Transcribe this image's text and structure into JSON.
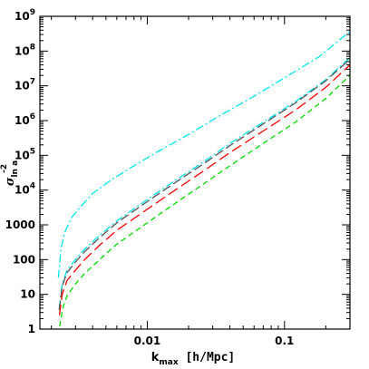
{
  "chart_data": {
    "type": "line",
    "xlabel": {
      "main": "k",
      "sub": "max",
      "unit": " [h/Mpc]"
    },
    "ylabel": {
      "main": "σ",
      "sub": "ln a",
      "sup": "-2"
    },
    "x_scale": "log",
    "y_scale": "log",
    "xlim": [
      0.00165,
      0.3
    ],
    "ylim": [
      1,
      1000000000
    ],
    "x_ticks": [
      {
        "value": 0.01,
        "label": "0.01"
      },
      {
        "value": 0.1,
        "label": "0.1"
      }
    ],
    "y_ticks": [
      {
        "value": 1,
        "label": "1"
      },
      {
        "value": 10,
        "label": "10"
      },
      {
        "value": 100,
        "label": "100"
      },
      {
        "value": 1000,
        "label": "1000"
      },
      {
        "value": 10000,
        "label": "10",
        "exp": "4"
      },
      {
        "value": 100000,
        "label": "10",
        "exp": "5"
      },
      {
        "value": 1000000,
        "label": "10",
        "exp": "6"
      },
      {
        "value": 10000000,
        "label": "10",
        "exp": "7"
      },
      {
        "value": 100000000,
        "label": "10",
        "exp": "8"
      },
      {
        "value": 1000000000,
        "label": "10",
        "exp": "9"
      }
    ],
    "grid": false,
    "series": [
      {
        "color": "#00e5ee",
        "dash": "9,3,2,3",
        "x": [
          0.00225,
          0.00235,
          0.0025,
          0.0028,
          0.0032,
          0.004,
          0.0055,
          0.008,
          0.012,
          0.02,
          0.035,
          0.06,
          0.1,
          0.18,
          0.3
        ],
        "y": [
          30,
          200,
          600,
          1600,
          3000,
          8000,
          20000,
          50000,
          130000,
          400000,
          1500000,
          5000000,
          17000000,
          70000000,
          370000000
        ]
      },
      {
        "color": "#00e5ee",
        "dash": "9,3,2,3",
        "x": [
          0.00228,
          0.0024,
          0.0026,
          0.003,
          0.0035,
          0.0045,
          0.006,
          0.009,
          0.015,
          0.025,
          0.04,
          0.07,
          0.12,
          0.2,
          0.3
        ],
        "y": [
          4,
          20,
          50,
          100,
          200,
          500,
          1300,
          4000,
          16000,
          60000,
          220000,
          900000,
          3500000,
          15000000,
          65000000
        ]
      },
      {
        "color": "#555555",
        "dash": "10,4",
        "x": [
          0.00228,
          0.0024,
          0.0026,
          0.003,
          0.0035,
          0.0045,
          0.006,
          0.009,
          0.015,
          0.025,
          0.04,
          0.07,
          0.12,
          0.2,
          0.3
        ],
        "y": [
          3.5,
          17,
          42,
          85,
          170,
          430,
          1150,
          3500,
          14000,
          53000,
          190000,
          800000,
          3200000,
          14000000,
          58000000
        ]
      },
      {
        "color": "#ff0000",
        "dash": "12,5",
        "x": [
          0.00229,
          0.0024,
          0.0026,
          0.003,
          0.0035,
          0.0045,
          0.006,
          0.009,
          0.015,
          0.025,
          0.04,
          0.07,
          0.12,
          0.2,
          0.3
        ],
        "y": [
          2.5,
          10,
          25,
          50,
          100,
          260,
          700,
          2100,
          8500,
          33000,
          120000,
          500000,
          2000000,
          9000000,
          40000000
        ]
      },
      {
        "color": "#00dd00",
        "dash": "6,4",
        "x": [
          0.0023,
          0.00242,
          0.0026,
          0.003,
          0.0035,
          0.0045,
          0.006,
          0.009,
          0.015,
          0.025,
          0.04,
          0.07,
          0.12,
          0.2,
          0.3
        ],
        "y": [
          1.2,
          4,
          9,
          20,
          40,
          100,
          280,
          850,
          3500,
          14000,
          50000,
          220000,
          900000,
          4300000,
          20000000
        ]
      }
    ]
  }
}
